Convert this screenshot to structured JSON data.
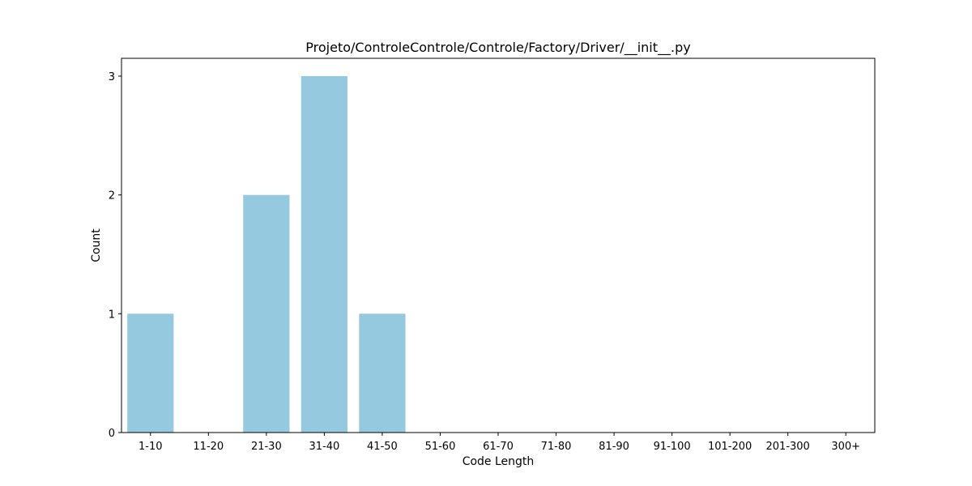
{
  "chart_data": {
    "type": "bar",
    "title": "Projeto/ControleControle/Controle/Factory/Driver/__init__.py",
    "xlabel": "Code Length",
    "ylabel": "Count",
    "categories": [
      "1-10",
      "11-20",
      "21-30",
      "31-40",
      "41-50",
      "51-60",
      "61-70",
      "71-80",
      "81-90",
      "91-100",
      "101-200",
      "201-300",
      "300+"
    ],
    "values": [
      1,
      0,
      2,
      3,
      1,
      0,
      0,
      0,
      0,
      0,
      0,
      0,
      0
    ],
    "ylim": [
      0,
      3.15
    ],
    "yticks": [
      0,
      1,
      2,
      3
    ],
    "grid": false,
    "bar_color": "#95c9df"
  }
}
